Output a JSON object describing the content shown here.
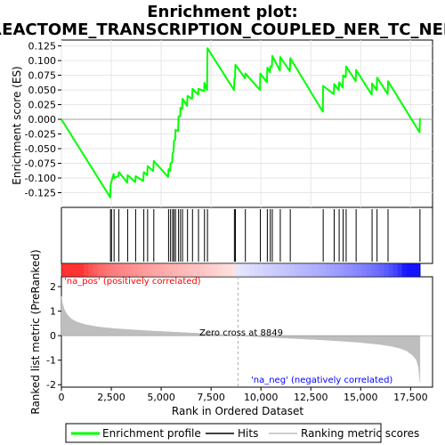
{
  "chart_data": {
    "type": "line",
    "title": "Enrichment plot:",
    "subtitle": "REACTOME_TRANSCRIPTION_COUPLED_NER_TC_NER",
    "es_panel": {
      "ylabel": "Enrichment score (ES)",
      "ylim": [
        -0.15,
        0.135
      ],
      "yticks": [
        -0.125,
        -0.1,
        -0.075,
        -0.05,
        -0.025,
        0.0,
        0.025,
        0.05,
        0.075,
        0.1,
        0.125
      ],
      "ytick_labels": [
        "-0.125",
        "-0.100",
        "-0.075",
        "-0.050",
        "-0.025",
        "0.000",
        "0.025",
        "0.050",
        "0.075",
        "0.100",
        "0.125"
      ],
      "series": [
        {
          "name": "Enrichment profile",
          "color": "#00ff00",
          "x": [
            0,
            2450,
            2460,
            2500,
            2620,
            2640,
            2850,
            2880,
            3300,
            3320,
            3700,
            3720,
            4100,
            4130,
            4300,
            4320,
            4600,
            4630,
            5350,
            5370,
            5450,
            5470,
            5550,
            5570,
            5620,
            5640,
            5700,
            5720,
            5850,
            5870,
            5950,
            5970,
            6050,
            6070,
            6300,
            6320,
            6550,
            6570,
            6850,
            6870,
            7150,
            7170,
            7300,
            7320,
            8650,
            8670,
            8700,
            8720,
            9200,
            9220,
            9950,
            9970,
            10300,
            10320,
            10450,
            10470,
            10550,
            10570,
            10950,
            10970,
            11450,
            11470,
            13100,
            13120,
            13650,
            13670,
            13900,
            13920,
            14100,
            14120,
            14250,
            14270,
            14750,
            14770,
            15550,
            15570,
            15800,
            15820,
            16350,
            16370,
            17950,
            17970
          ],
          "y": [
            0.0,
            -0.133,
            -0.113,
            -0.107,
            -0.093,
            -0.1,
            -0.097,
            -0.09,
            -0.108,
            -0.095,
            -0.107,
            -0.097,
            -0.105,
            -0.09,
            -0.095,
            -0.08,
            -0.088,
            -0.071,
            -0.098,
            -0.085,
            -0.088,
            -0.075,
            -0.073,
            -0.058,
            -0.055,
            -0.037,
            -0.035,
            -0.018,
            -0.02,
            0.005,
            0.005,
            0.02,
            0.017,
            0.035,
            0.023,
            0.04,
            0.035,
            0.052,
            0.042,
            0.052,
            0.048,
            0.062,
            0.05,
            0.121,
            0.05,
            0.07,
            0.07,
            0.093,
            0.07,
            0.078,
            0.05,
            0.078,
            0.063,
            0.088,
            0.08,
            0.09,
            0.09,
            0.108,
            0.083,
            0.106,
            0.082,
            0.104,
            0.013,
            0.057,
            0.043,
            0.06,
            0.05,
            0.063,
            0.054,
            0.075,
            0.072,
            0.09,
            0.065,
            0.084,
            0.042,
            0.061,
            0.05,
            0.071,
            0.043,
            0.065,
            -0.022,
            0.002
          ]
        }
      ]
    },
    "hits": {
      "name": "Hits",
      "x": [
        2460,
        2510,
        2640,
        2880,
        3320,
        3720,
        4130,
        4320,
        4630,
        5370,
        5470,
        5570,
        5640,
        5720,
        5870,
        5970,
        6070,
        6320,
        6570,
        6870,
        7170,
        7320,
        8670,
        8720,
        9220,
        9970,
        10320,
        10470,
        10570,
        10970,
        11470,
        13120,
        13670,
        13920,
        14120,
        14270,
        14770,
        15570,
        15820,
        16370,
        17970
      ]
    },
    "ranked_panel": {
      "name": "Ranking metric scores",
      "ylabel": "Ranked list metric (PreRanked)",
      "ylim": [
        -2.1,
        2.4
      ],
      "yticks": [
        -2,
        -1,
        0,
        1,
        2
      ],
      "ytick_labels": [
        "-2",
        "-1",
        "0",
        "1",
        "2"
      ],
      "metric_x": [
        0,
        60,
        150,
        300,
        500,
        800,
        1200,
        1800,
        2500,
        3500,
        4500,
        5500,
        6500,
        7500,
        8849,
        10000,
        11000,
        12000,
        13000,
        14000,
        15000,
        16000,
        16600,
        17000,
        17300,
        17600,
        17800,
        17900,
        17970
      ],
      "metric_y": [
        1.6,
        1.3,
        1.05,
        0.85,
        0.68,
        0.55,
        0.45,
        0.36,
        0.3,
        0.24,
        0.19,
        0.15,
        0.11,
        0.07,
        0.0,
        -0.05,
        -0.09,
        -0.13,
        -0.17,
        -0.22,
        -0.28,
        -0.36,
        -0.44,
        -0.52,
        -0.62,
        -0.8,
        -1.0,
        -1.3,
        -1.9
      ],
      "zero_cross_label": "Zero cross at 8849",
      "zero_cross_x": 8849,
      "pos_label": "'na_pos' (positively correlated)",
      "neg_label": "'na_neg' (negatively correlated)"
    },
    "xaxis": {
      "xlabel": "Rank in Ordered Dataset",
      "xlim": [
        0,
        18600
      ],
      "xticks": [
        0,
        2500,
        5000,
        7500,
        10000,
        12500,
        15000,
        17500
      ],
      "xtick_labels": [
        "0",
        "2,500",
        "5,000",
        "7,500",
        "10,000",
        "12,500",
        "15,000",
        "17,500"
      ],
      "n_genes": 17970
    },
    "legend": {
      "placement": "bottom",
      "items": [
        {
          "label": "Enrichment profile",
          "color": "#00ff00"
        },
        {
          "label": "Hits",
          "color": "#000000"
        },
        {
          "label": "Ranking metric scores",
          "color": "#bebebe"
        }
      ]
    },
    "colors": {
      "profile": "#00ff00",
      "pos_label": "#ff0000",
      "neg_label": "#0000ff",
      "metric_fill": "#bebebe",
      "zero_line": "#aaaaaa"
    }
  }
}
